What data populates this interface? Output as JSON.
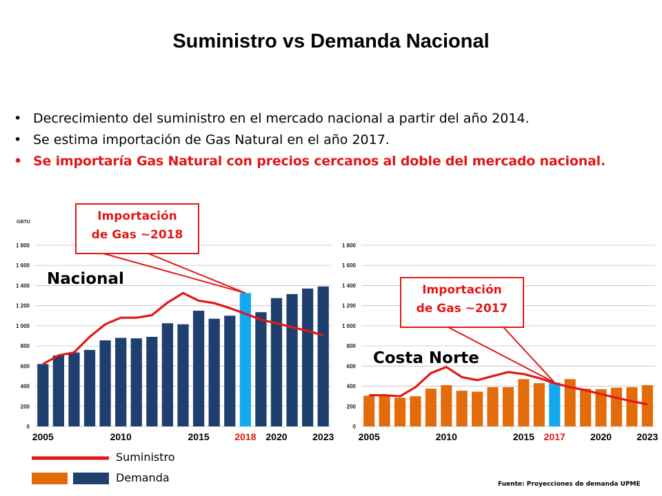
{
  "page": {
    "title": "Suministro vs Demanda Nacional",
    "bullets": [
      "Decrecimiento del suministro en el mercado nacional a partir del año 2014.",
      "Se estima importación de Gas Natural en el año 2017.",
      "Se importaría Gas Natural con precios cercanos al doble del mercado nacional."
    ],
    "legend": {
      "supply_label": "Suministro",
      "demand_label": "Demanda"
    },
    "source": "Fuente: Proyecciones de demanda UPME"
  },
  "colors": {
    "supply": "#e11717",
    "demand_nacional": "#1f3f6e",
    "demand_costa": "#e36c0a",
    "highlight": "#14a9ef"
  },
  "chart_data": [
    {
      "type": "bar",
      "name": "Nacional",
      "region_label": "Nacional",
      "unit_label": "GBTU",
      "categories": [
        2005,
        2006,
        2007,
        2008,
        2009,
        2010,
        2011,
        2012,
        2013,
        2014,
        2015,
        2016,
        2017,
        2018,
        2019,
        2020,
        2021,
        2022,
        2023
      ],
      "category_labels": [
        "2005",
        "2010",
        "2015",
        "2018",
        "2020",
        "2023"
      ],
      "highlight_year": 2018,
      "yticks": [
        "0",
        "200",
        "400",
        "600",
        "800",
        "1 000",
        "1 200",
        "1 400",
        "1 600",
        "1 800"
      ],
      "ylim": [
        0,
        1800
      ],
      "series": [
        {
          "name": "Demanda",
          "type": "bar",
          "values": [
            620,
            705,
            735,
            760,
            855,
            880,
            875,
            890,
            1025,
            1015,
            1150,
            1070,
            1100,
            1325,
            1135,
            1275,
            1315,
            1370,
            1390
          ]
        },
        {
          "name": "Suministro",
          "type": "line",
          "values": [
            620,
            705,
            735,
            890,
            1015,
            1080,
            1080,
            1105,
            1230,
            1325,
            1250,
            1225,
            1175,
            1120,
            1060,
            1025,
            985,
            950,
            905
          ]
        }
      ],
      "callout": {
        "line1": "Importación",
        "line2": "de Gas ~2018"
      }
    },
    {
      "type": "bar",
      "name": "Costa Norte",
      "region_label": "Costa Norte",
      "categories": [
        2005,
        2006,
        2007,
        2008,
        2009,
        2010,
        2011,
        2012,
        2013,
        2014,
        2015,
        2016,
        2017,
        2018,
        2019,
        2020,
        2021,
        2022,
        2023
      ],
      "category_labels": [
        "2005",
        "2010",
        "2015",
        "2017",
        "2020",
        "2023"
      ],
      "highlight_year": 2017,
      "yticks": [
        "0",
        "200",
        "400",
        "600",
        "800",
        "1 000",
        "1 200",
        "1 400",
        "1 600",
        "1 800"
      ],
      "ylim": [
        0,
        1800
      ],
      "series": [
        {
          "name": "Demanda",
          "type": "bar",
          "values": [
            305,
            305,
            285,
            300,
            375,
            410,
            355,
            345,
            390,
            390,
            470,
            430,
            435,
            470,
            375,
            370,
            385,
            390,
            410
          ]
        },
        {
          "name": "Suministro",
          "type": "line",
          "values": [
            310,
            310,
            300,
            390,
            530,
            590,
            490,
            460,
            500,
            540,
            520,
            480,
            430,
            390,
            360,
            320,
            285,
            250,
            220
          ]
        }
      ],
      "callout": {
        "line1": "Importación",
        "line2": "de Gas ~2017"
      }
    }
  ]
}
